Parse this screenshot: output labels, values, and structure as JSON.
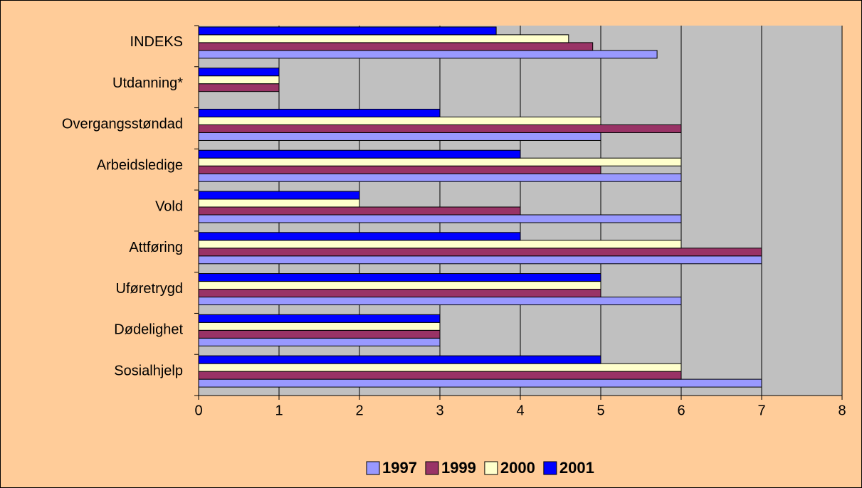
{
  "chart_data": {
    "type": "hbar",
    "categories": [
      "INDEKS",
      "Utdanning*",
      "Overgangsstøndad",
      "Arbeidsledige",
      "Vold",
      "Attføring",
      "Uføretrygd",
      "Dødelighet",
      "Sosialhjelp"
    ],
    "series": [
      {
        "name": "1997",
        "color": "#9999ff",
        "values": [
          5.7,
          null,
          5,
          6,
          6,
          7,
          6,
          3,
          7
        ]
      },
      {
        "name": "1999",
        "color": "#993366",
        "values": [
          4.9,
          1,
          6,
          5,
          4,
          7,
          5,
          3,
          6
        ]
      },
      {
        "name": "2000",
        "color": "#ffffcc",
        "values": [
          4.6,
          1,
          5,
          6,
          2,
          6,
          5,
          3,
          6
        ]
      },
      {
        "name": "2001",
        "color": "#0000ff",
        "values": [
          3.7,
          1,
          3,
          4,
          2,
          4,
          5,
          3,
          5
        ]
      }
    ],
    "xlim": [
      0,
      8
    ],
    "xticks": [
      0,
      1,
      2,
      3,
      4,
      5,
      6,
      7,
      8
    ],
    "grid": true
  }
}
